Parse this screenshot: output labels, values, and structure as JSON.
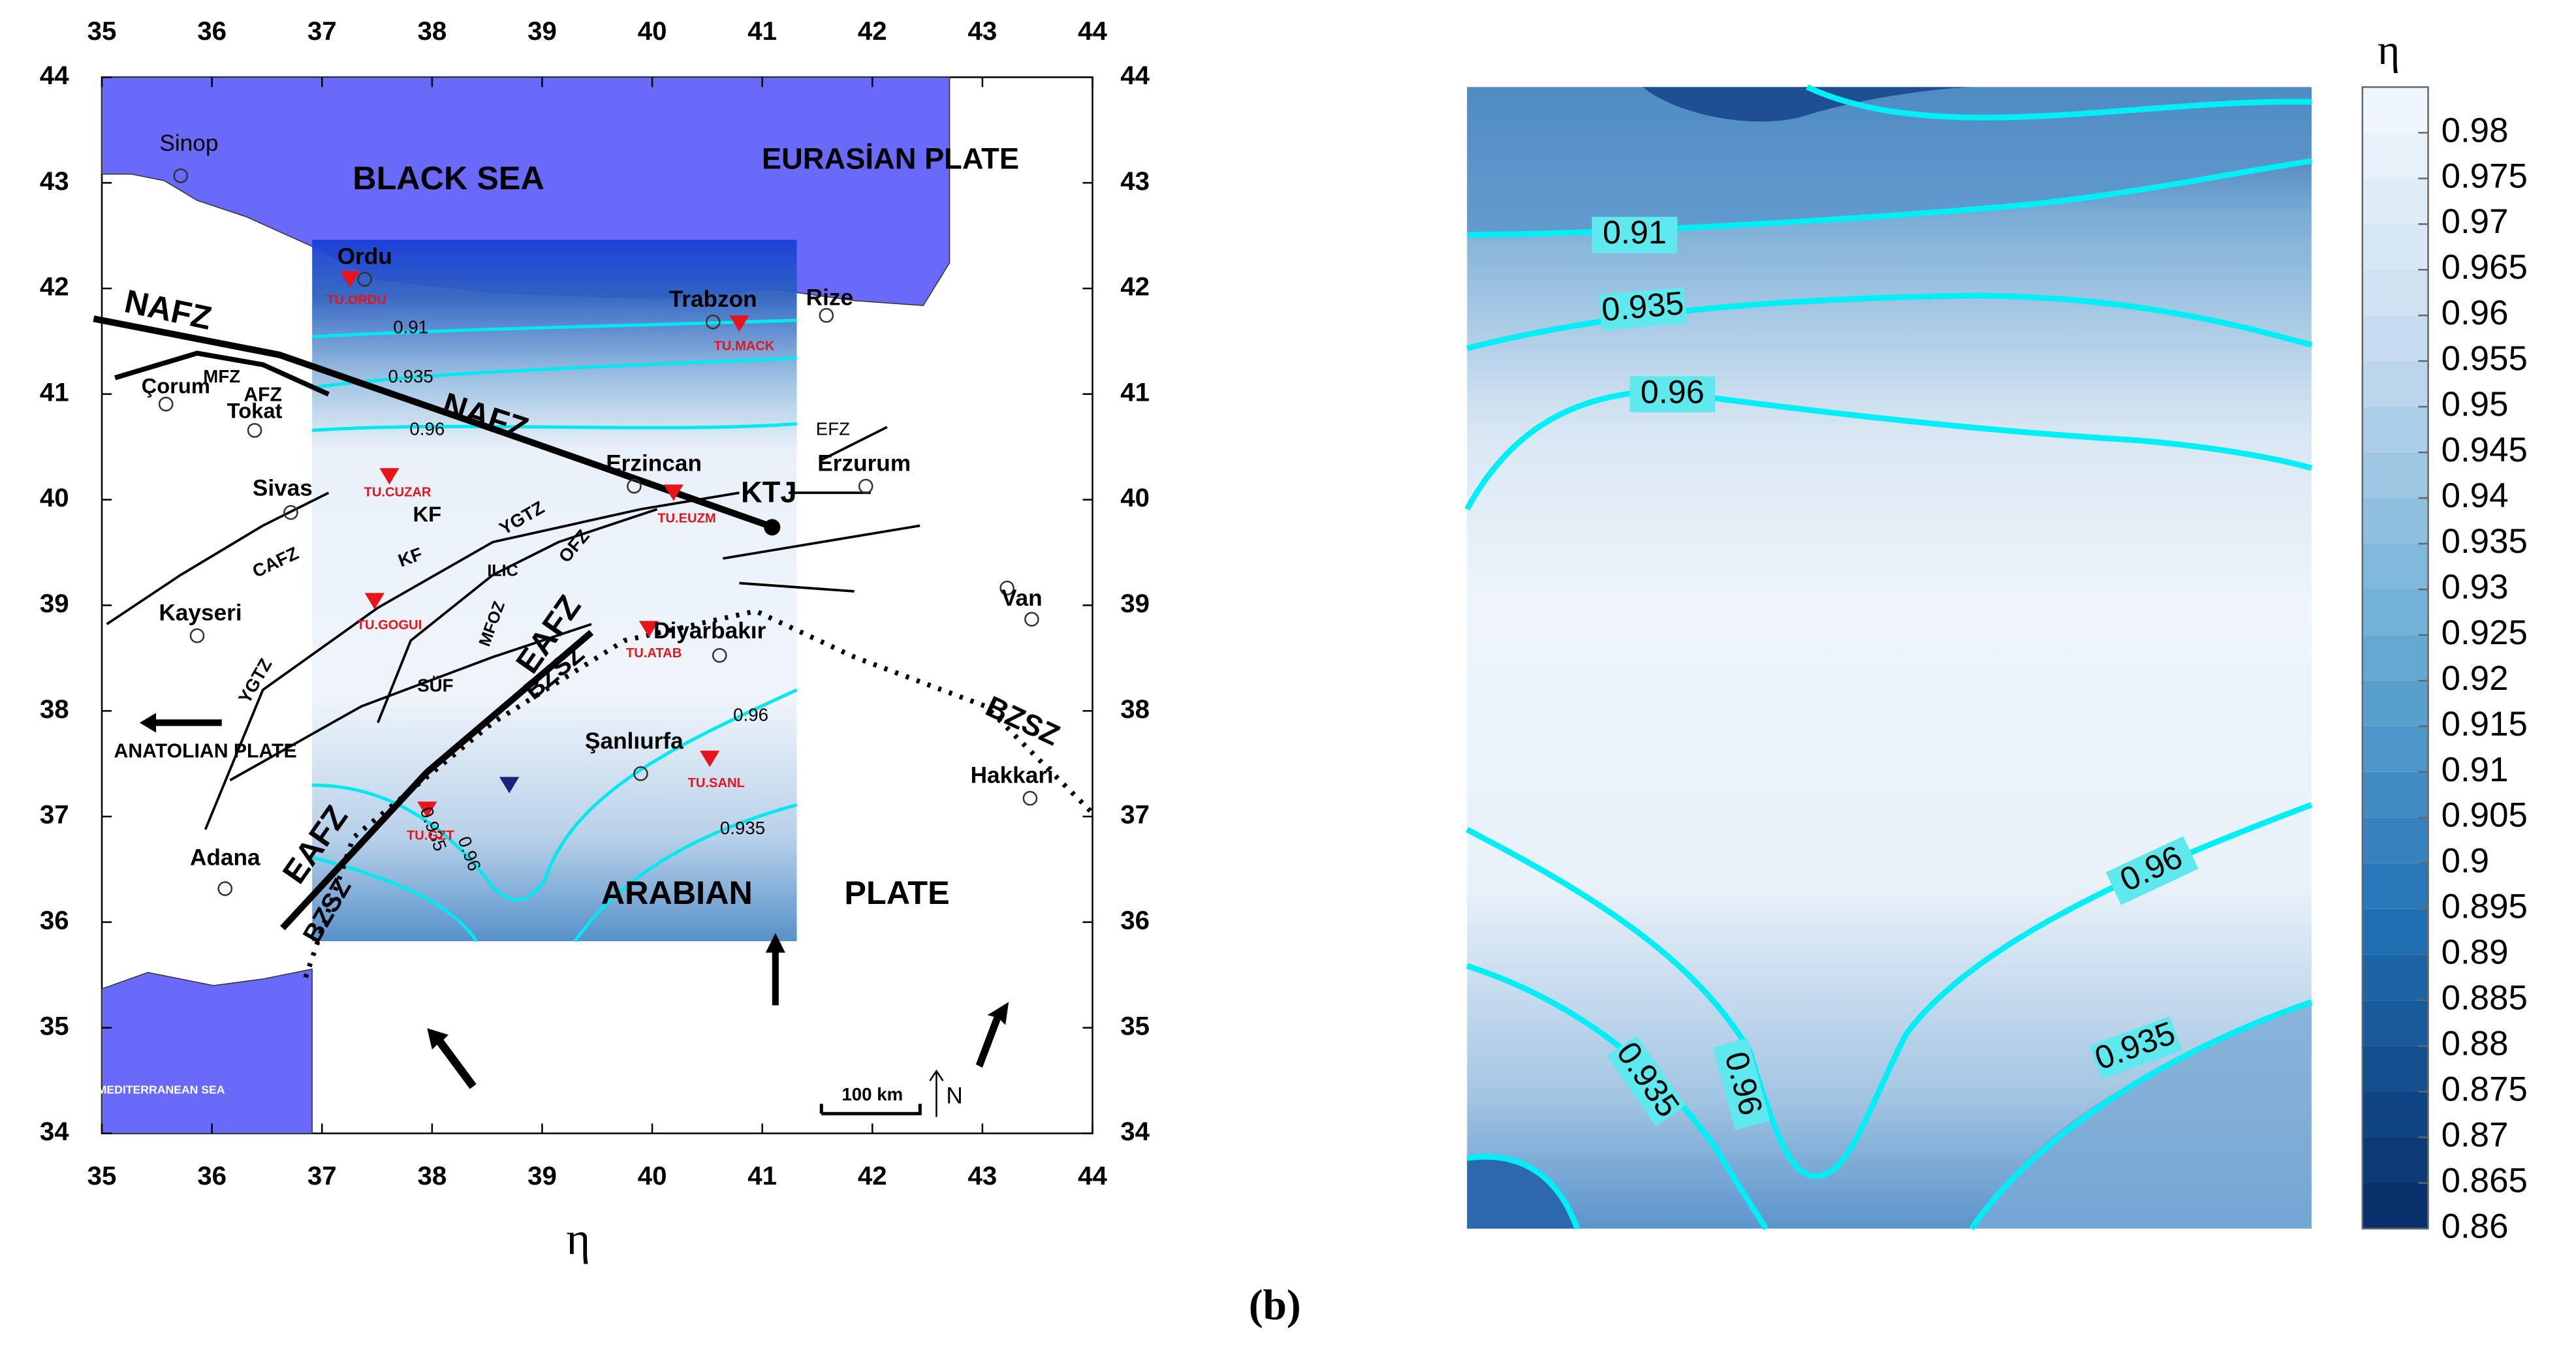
{
  "map": {
    "xlim": [
      35,
      44
    ],
    "ylim": [
      34,
      44
    ],
    "xticks": [
      35,
      36,
      37,
      38,
      39,
      40,
      41,
      42,
      43,
      44
    ],
    "yticks": [
      34,
      35,
      36,
      37,
      38,
      39,
      40,
      41,
      42,
      43,
      44
    ],
    "labels": [
      "Sinop",
      "BLACK SEA",
      "EURASİAN PLATE",
      "Ordu",
      "TU.ORDU",
      "Trabzon",
      "Rize",
      "TU.MACK",
      "NAFZ",
      "MFZ",
      "AFZ",
      "Çorum",
      "Tokat",
      "NAFZ",
      "0.91",
      "0.935",
      "0.96",
      "EFZ",
      "Erzincan",
      "Erzurum",
      "Sivas",
      "TU.CUZAR",
      "KF",
      "YGTZ",
      "KTJ",
      "TU.EUZM",
      "OFZ",
      "CAFZ",
      "KF",
      "ILIC",
      "MFOZ",
      "TU.GOGUI",
      "Kayseri",
      "Diyarbakır",
      "Van",
      "EAFZ",
      "TU.ATAB",
      "BZSZ",
      "SÜF",
      "YGTZ",
      "0.96",
      "BZSZ",
      "ANATOLIAN PLATE",
      "Şanlıurfa",
      "Hakkari",
      "TU.SANL",
      "0.935",
      "0.96",
      "TU.GZT",
      "0.935",
      "EAFZ",
      "Adana",
      "BZSZ",
      "ARABIAN",
      "PLATE",
      "MEDITERRANEAN SEA"
    ],
    "scale_bar": "100 km",
    "north": "N",
    "x_label": "η"
  },
  "contour_plot": {
    "contour_labels": [
      0.91,
      0.935,
      0.96,
      0.96,
      0.935,
      0.96,
      0.935
    ],
    "colorbar": {
      "title": "η",
      "lim": [
        0.86,
        0.985
      ],
      "ticks": [
        0.86,
        0.865,
        0.87,
        0.875,
        0.88,
        0.885,
        0.89,
        0.895,
        0.9,
        0.905,
        0.91,
        0.915,
        0.92,
        0.925,
        0.93,
        0.935,
        0.94,
        0.945,
        0.95,
        0.955,
        0.96,
        0.965,
        0.97,
        0.975,
        0.98
      ]
    }
  },
  "caption": "(b)"
}
